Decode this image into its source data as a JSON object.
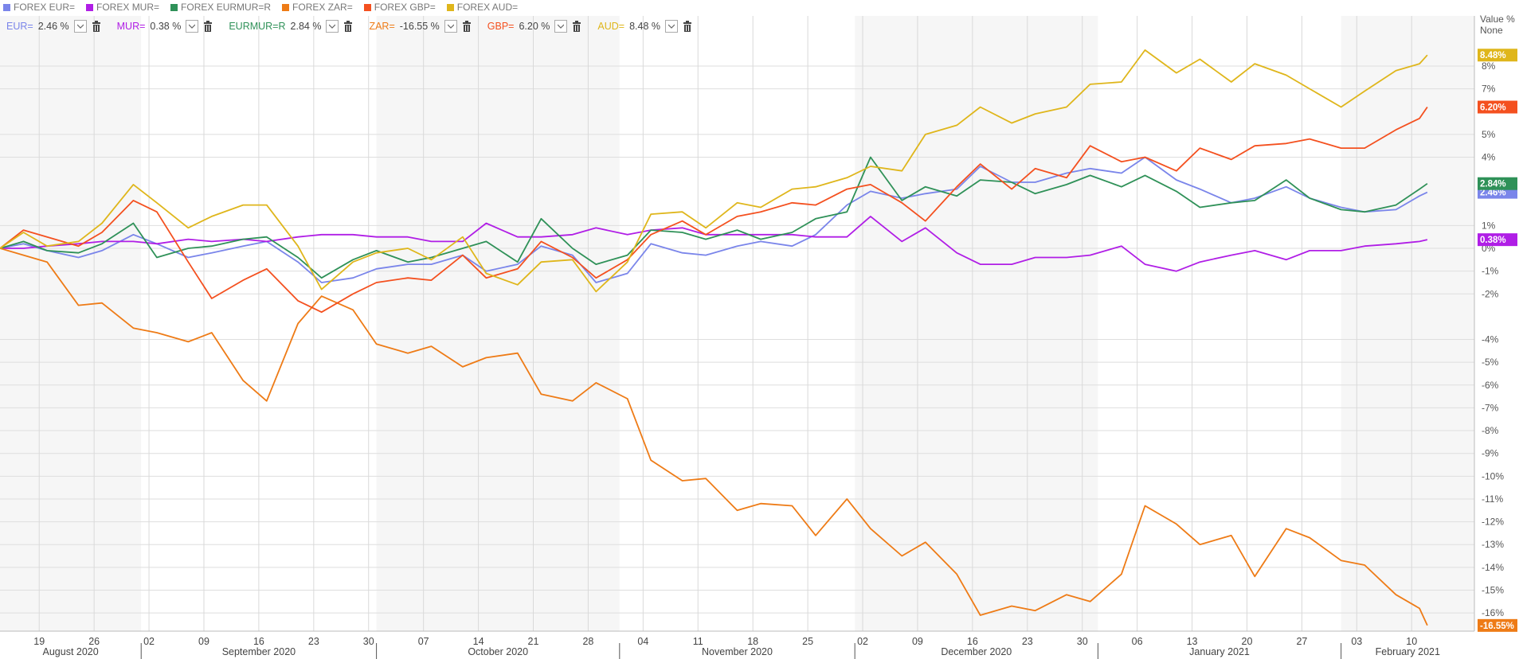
{
  "chart_data": {
    "type": "line",
    "y_axis_title": "Value %",
    "y_axis_mode": "None",
    "x": [
      "2020-08-14",
      "2020-08-17",
      "2020-08-20",
      "2020-08-24",
      "2020-08-27",
      "2020-08-31",
      "2020-09-03",
      "2020-09-07",
      "2020-09-10",
      "2020-09-14",
      "2020-09-17",
      "2020-09-21",
      "2020-09-24",
      "2020-09-28",
      "2020-10-01",
      "2020-10-05",
      "2020-10-08",
      "2020-10-12",
      "2020-10-15",
      "2020-10-19",
      "2020-10-22",
      "2020-10-26",
      "2020-10-29",
      "2020-11-02",
      "2020-11-05",
      "2020-11-09",
      "2020-11-12",
      "2020-11-16",
      "2020-11-19",
      "2020-11-23",
      "2020-11-26",
      "2020-11-30",
      "2020-12-03",
      "2020-12-07",
      "2020-12-10",
      "2020-12-14",
      "2020-12-17",
      "2020-12-21",
      "2020-12-24",
      "2020-12-28",
      "2020-12-31",
      "2021-01-04",
      "2021-01-07",
      "2021-01-11",
      "2021-01-14",
      "2021-01-18",
      "2021-01-21",
      "2021-01-25",
      "2021-01-28",
      "2021-02-01",
      "2021-02-04",
      "2021-02-08",
      "2021-02-11",
      "2021-02-12"
    ],
    "xlim": [
      "2020-08-14",
      "2021-02-18"
    ],
    "xticks": [
      {
        "value": "2020-08-19",
        "label": "19"
      },
      {
        "value": "2020-08-26",
        "label": "26"
      },
      {
        "value": "2020-09-02",
        "label": "02"
      },
      {
        "value": "2020-09-09",
        "label": "09"
      },
      {
        "value": "2020-09-16",
        "label": "16"
      },
      {
        "value": "2020-09-23",
        "label": "23"
      },
      {
        "value": "2020-09-30",
        "label": "30"
      },
      {
        "value": "2020-10-07",
        "label": "07"
      },
      {
        "value": "2020-10-14",
        "label": "14"
      },
      {
        "value": "2020-10-21",
        "label": "21"
      },
      {
        "value": "2020-10-28",
        "label": "28"
      },
      {
        "value": "2020-11-04",
        "label": "04"
      },
      {
        "value": "2020-11-11",
        "label": "11"
      },
      {
        "value": "2020-11-18",
        "label": "18"
      },
      {
        "value": "2020-11-25",
        "label": "25"
      },
      {
        "value": "2020-12-02",
        "label": "02"
      },
      {
        "value": "2020-12-09",
        "label": "09"
      },
      {
        "value": "2020-12-16",
        "label": "16"
      },
      {
        "value": "2020-12-23",
        "label": "23"
      },
      {
        "value": "2020-12-30",
        "label": "30"
      },
      {
        "value": "2021-01-06",
        "label": "06"
      },
      {
        "value": "2021-01-13",
        "label": "13"
      },
      {
        "value": "2021-01-20",
        "label": "20"
      },
      {
        "value": "2021-01-27",
        "label": "27"
      },
      {
        "value": "2021-02-03",
        "label": "03"
      },
      {
        "value": "2021-02-10",
        "label": "10"
      }
    ],
    "months": [
      {
        "value": "2020-08",
        "label": "August 2020"
      },
      {
        "value": "2020-09",
        "label": "September 2020"
      },
      {
        "value": "2020-10",
        "label": "October 2020"
      },
      {
        "value": "2020-11",
        "label": "November 2020"
      },
      {
        "value": "2020-12",
        "label": "December 2020"
      },
      {
        "value": "2021-01",
        "label": "January 2021"
      },
      {
        "value": "2021-02",
        "label": "February 2021"
      }
    ],
    "ylim": [
      -16.8,
      10.2
    ],
    "yticks": [
      {
        "value": 8,
        "label": "8%"
      },
      {
        "value": 7,
        "label": "7%"
      },
      {
        "value": 5,
        "label": "5%"
      },
      {
        "value": 4,
        "label": "4%"
      },
      {
        "value": 1,
        "label": "1%"
      },
      {
        "value": 0,
        "label": "0%"
      },
      {
        "value": -1,
        "label": "-1%"
      },
      {
        "value": -2,
        "label": "-2%"
      },
      {
        "value": -4,
        "label": "-4%"
      },
      {
        "value": -5,
        "label": "-5%"
      },
      {
        "value": -6,
        "label": "-6%"
      },
      {
        "value": -7,
        "label": "-7%"
      },
      {
        "value": -8,
        "label": "-8%"
      },
      {
        "value": -9,
        "label": "-9%"
      },
      {
        "value": -10,
        "label": "-10%"
      },
      {
        "value": -11,
        "label": "-11%"
      },
      {
        "value": -12,
        "label": "-12%"
      },
      {
        "value": -13,
        "label": "-13%"
      },
      {
        "value": -14,
        "label": "-14%"
      },
      {
        "value": -15,
        "label": "-15%"
      },
      {
        "value": -16,
        "label": "-16%"
      }
    ],
    "grid": true,
    "series": [
      {
        "name": "FOREX EUR=",
        "symbol": "EUR=",
        "color": "#7a85ea",
        "toolbar_label": "2.46 %",
        "axis_label": "2.46%",
        "values": [
          0,
          0.2,
          -0.1,
          -0.4,
          -0.1,
          0.6,
          0.2,
          -0.4,
          -0.2,
          0.1,
          0.3,
          -0.6,
          -1.5,
          -1.3,
          -0.9,
          -0.7,
          -0.7,
          -0.3,
          -1.0,
          -0.7,
          0.1,
          -0.3,
          -1.5,
          -1.1,
          0.2,
          -0.2,
          -0.3,
          0.1,
          0.3,
          0.1,
          0.6,
          1.9,
          2.5,
          2.2,
          2.4,
          2.6,
          3.6,
          2.9,
          2.9,
          3.3,
          3.5,
          3.3,
          4.0,
          3.0,
          2.6,
          2.0,
          2.2,
          2.7,
          2.2,
          1.8,
          1.6,
          1.7,
          2.3,
          2.46
        ]
      },
      {
        "name": "FOREX MUR=",
        "symbol": "MUR=",
        "color": "#b01ee6",
        "toolbar_label": "0.38 %",
        "axis_label": "0.38%",
        "values": [
          0,
          0.0,
          0.1,
          0.2,
          0.3,
          0.3,
          0.2,
          0.4,
          0.3,
          0.4,
          0.3,
          0.5,
          0.6,
          0.6,
          0.5,
          0.5,
          0.3,
          0.3,
          1.1,
          0.5,
          0.5,
          0.6,
          0.9,
          0.6,
          0.8,
          0.9,
          0.6,
          0.6,
          0.6,
          0.6,
          0.5,
          0.5,
          1.4,
          0.3,
          0.9,
          -0.2,
          -0.7,
          -0.7,
          -0.4,
          -0.4,
          -0.3,
          0.1,
          -0.7,
          -1.0,
          -0.6,
          -0.3,
          -0.1,
          -0.5,
          -0.1,
          -0.1,
          0.1,
          0.2,
          0.3,
          0.38
        ]
      },
      {
        "name": "FOREX EURMUR=R",
        "symbol": "EURMUR=R",
        "color": "#2f9158",
        "toolbar_label": "2.84 %",
        "axis_label": "2.84%",
        "values": [
          0,
          0.3,
          -0.1,
          -0.2,
          0.2,
          1.1,
          -0.4,
          0.0,
          0.1,
          0.4,
          0.5,
          -0.4,
          -1.3,
          -0.5,
          -0.1,
          -0.6,
          -0.4,
          0.0,
          0.3,
          -0.6,
          1.3,
          0.0,
          -0.7,
          -0.3,
          0.8,
          0.7,
          0.4,
          0.8,
          0.4,
          0.7,
          1.3,
          1.6,
          4.0,
          2.1,
          2.7,
          2.3,
          3.0,
          2.9,
          2.4,
          2.8,
          3.2,
          2.7,
          3.2,
          2.5,
          1.8,
          2.0,
          2.1,
          3.0,
          2.2,
          1.7,
          1.6,
          1.9,
          2.6,
          2.84
        ]
      },
      {
        "name": "FOREX ZAR=",
        "symbol": "ZAR=",
        "color": "#ee7b16",
        "toolbar_label": "-16.55 %",
        "axis_label": "-16.55%",
        "values": [
          0,
          -0.3,
          -0.6,
          -2.5,
          -2.4,
          -3.5,
          -3.7,
          -4.1,
          -3.7,
          -5.8,
          -6.7,
          -3.3,
          -2.1,
          -2.7,
          -4.2,
          -4.6,
          -4.3,
          -5.2,
          -4.8,
          -4.6,
          -6.4,
          -6.7,
          -5.9,
          -6.6,
          -9.3,
          -10.2,
          -10.1,
          -11.5,
          -11.2,
          -11.3,
          -12.6,
          -11.0,
          -12.3,
          -13.5,
          -12.9,
          -14.3,
          -16.1,
          -15.7,
          -15.9,
          -15.2,
          -15.5,
          -14.3,
          -11.3,
          -12.1,
          -13.0,
          -12.6,
          -14.4,
          -12.3,
          -12.7,
          -13.7,
          -13.9,
          -15.2,
          -15.8,
          -16.55
        ]
      },
      {
        "name": "FOREX GBP=",
        "symbol": "GBP=",
        "color": "#f4501f",
        "toolbar_label": "6.20 %",
        "axis_label": "6.20%",
        "values": [
          0,
          0.8,
          0.5,
          0.1,
          0.7,
          2.1,
          1.6,
          -0.6,
          -2.2,
          -1.4,
          -0.9,
          -2.3,
          -2.8,
          -2.0,
          -1.5,
          -1.3,
          -1.4,
          -0.3,
          -1.3,
          -0.9,
          0.3,
          -0.4,
          -1.3,
          -0.5,
          0.6,
          1.2,
          0.6,
          1.4,
          1.6,
          2.0,
          1.9,
          2.6,
          2.8,
          2.0,
          1.2,
          2.7,
          3.7,
          2.6,
          3.5,
          3.1,
          4.5,
          3.8,
          4.0,
          3.4,
          4.4,
          3.9,
          4.5,
          4.6,
          4.8,
          4.4,
          4.4,
          5.2,
          5.7,
          6.2
        ]
      },
      {
        "name": "FOREX AUD=",
        "symbol": "AUD=",
        "color": "#dfb61b",
        "toolbar_label": "8.48 %",
        "axis_label": "8.48%",
        "values": [
          0,
          0.7,
          0.1,
          0.3,
          1.1,
          2.8,
          2.0,
          0.9,
          1.4,
          1.9,
          1.9,
          0.1,
          -1.8,
          -0.6,
          -0.2,
          0,
          -0.5,
          0.5,
          -1.1,
          -1.6,
          -0.6,
          -0.5,
          -1.9,
          -0.6,
          1.5,
          1.6,
          0.9,
          2.0,
          1.8,
          2.6,
          2.7,
          3.1,
          3.6,
          3.4,
          5.0,
          5.4,
          6.2,
          5.5,
          5.9,
          6.2,
          7.2,
          7.3,
          8.7,
          7.7,
          8.3,
          7.3,
          8.1,
          7.6,
          7.0,
          6.2,
          6.9,
          7.8,
          8.1,
          8.48
        ]
      }
    ]
  }
}
